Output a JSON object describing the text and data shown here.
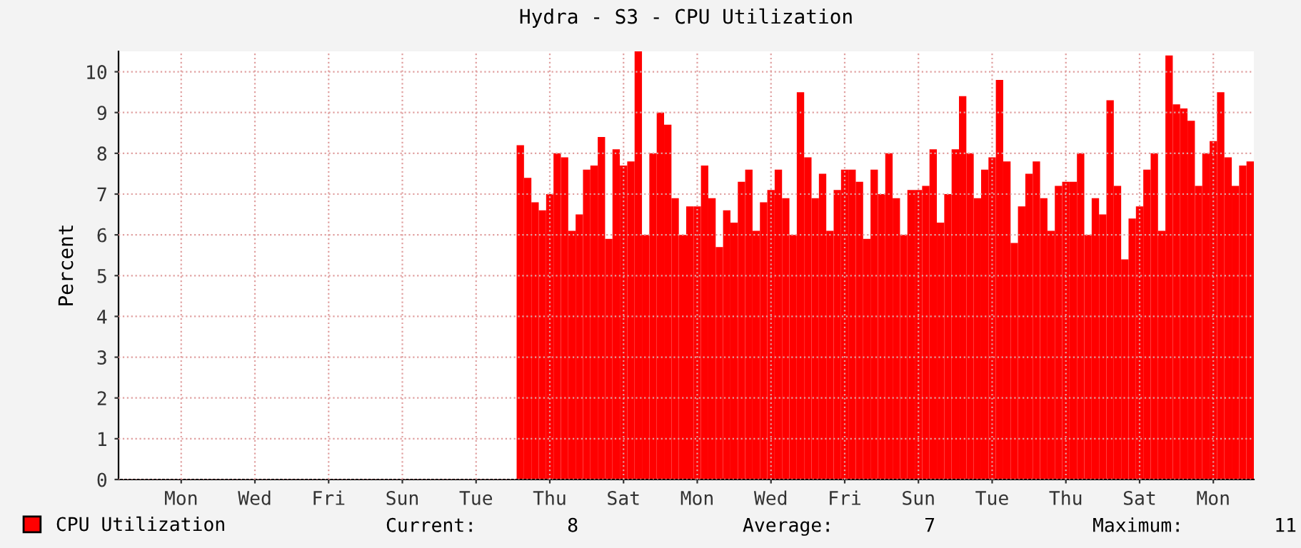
{
  "chart_data": {
    "type": "bar",
    "title": "Hydra - S3 - CPU Utilization",
    "ylabel": "Percent",
    "categories": [
      null,
      null,
      null,
      null,
      null,
      null,
      null,
      null,
      "Mon",
      null,
      null,
      null,
      null,
      null,
      null,
      null,
      null,
      null,
      "Wed",
      null,
      null,
      null,
      null,
      null,
      null,
      null,
      null,
      null,
      "Fri",
      null,
      null,
      null,
      null,
      null,
      null,
      null,
      null,
      null,
      "Sun",
      null,
      null,
      null,
      null,
      null,
      null,
      null,
      null,
      null,
      "Tue",
      null,
      null,
      null,
      null,
      null,
      null,
      null,
      null,
      null,
      "Thu",
      null,
      null,
      null,
      null,
      null,
      null,
      null,
      null,
      null,
      "Sat",
      null,
      null,
      null,
      null,
      null,
      null,
      null,
      null,
      null,
      "Mon",
      null,
      null,
      null,
      null,
      null,
      null,
      null,
      null,
      null,
      "Wed",
      null,
      null,
      null,
      null,
      null,
      null,
      null,
      null,
      null,
      "Fri",
      null,
      null,
      null,
      null,
      null,
      null,
      null,
      null,
      null,
      "Sun",
      null,
      null,
      null,
      null,
      null,
      null,
      null,
      null,
      null,
      "Tue",
      null,
      null,
      null,
      null,
      null,
      null,
      null,
      null,
      null,
      "Thu",
      null,
      null,
      null,
      null,
      null,
      null,
      null,
      null,
      null,
      "Sat",
      null,
      null,
      null,
      null,
      null,
      null,
      null,
      null,
      null,
      "Mon",
      null,
      null,
      null,
      null,
      null
    ],
    "series": [
      {
        "name": "CPU Utilization",
        "color": "#ff0000",
        "values": [
          null,
          null,
          null,
          null,
          null,
          null,
          null,
          null,
          null,
          null,
          null,
          null,
          null,
          null,
          null,
          null,
          null,
          null,
          null,
          null,
          null,
          null,
          null,
          null,
          null,
          null,
          null,
          null,
          null,
          null,
          null,
          null,
          null,
          null,
          null,
          null,
          null,
          null,
          null,
          null,
          null,
          null,
          null,
          null,
          null,
          null,
          null,
          null,
          null,
          null,
          null,
          null,
          null,
          null,
          8.2,
          7.4,
          6.8,
          6.6,
          7.0,
          8.0,
          7.9,
          6.1,
          6.5,
          7.6,
          7.7,
          8.4,
          5.9,
          8.1,
          7.7,
          7.8,
          10.5,
          6.0,
          8.0,
          9.0,
          8.7,
          6.9,
          6.0,
          6.7,
          6.7,
          7.7,
          6.9,
          5.7,
          6.6,
          6.3,
          7.3,
          7.6,
          6.1,
          6.8,
          7.1,
          7.6,
          6.9,
          6.0,
          9.5,
          7.9,
          6.9,
          7.5,
          6.1,
          7.1,
          7.6,
          7.6,
          7.3,
          5.9,
          7.6,
          7.0,
          8.0,
          6.9,
          6.0,
          7.1,
          7.1,
          7.2,
          8.1,
          6.3,
          7.0,
          8.1,
          9.4,
          8.0,
          6.9,
          7.6,
          7.9,
          9.8,
          7.8,
          5.8,
          6.7,
          7.5,
          7.8,
          6.9,
          6.1,
          7.2,
          7.3,
          7.3,
          8.0,
          6.0,
          6.9,
          6.5,
          9.3,
          7.2,
          5.4,
          6.4,
          6.7,
          7.6,
          8.0,
          6.1,
          10.4,
          9.2,
          9.1,
          8.8,
          7.2,
          8.0,
          8.3,
          9.5,
          7.9,
          7.2,
          7.7,
          7.8
        ]
      }
    ],
    "ylim": [
      0,
      10.5
    ],
    "yticks": [
      0,
      1,
      2,
      3,
      4,
      5,
      6,
      7,
      8,
      9,
      10
    ],
    "grid": true,
    "legend": "bottom left",
    "annotations": [
      "Current:        8",
      "Average:        7",
      "Maximum:        11"
    ]
  }
}
